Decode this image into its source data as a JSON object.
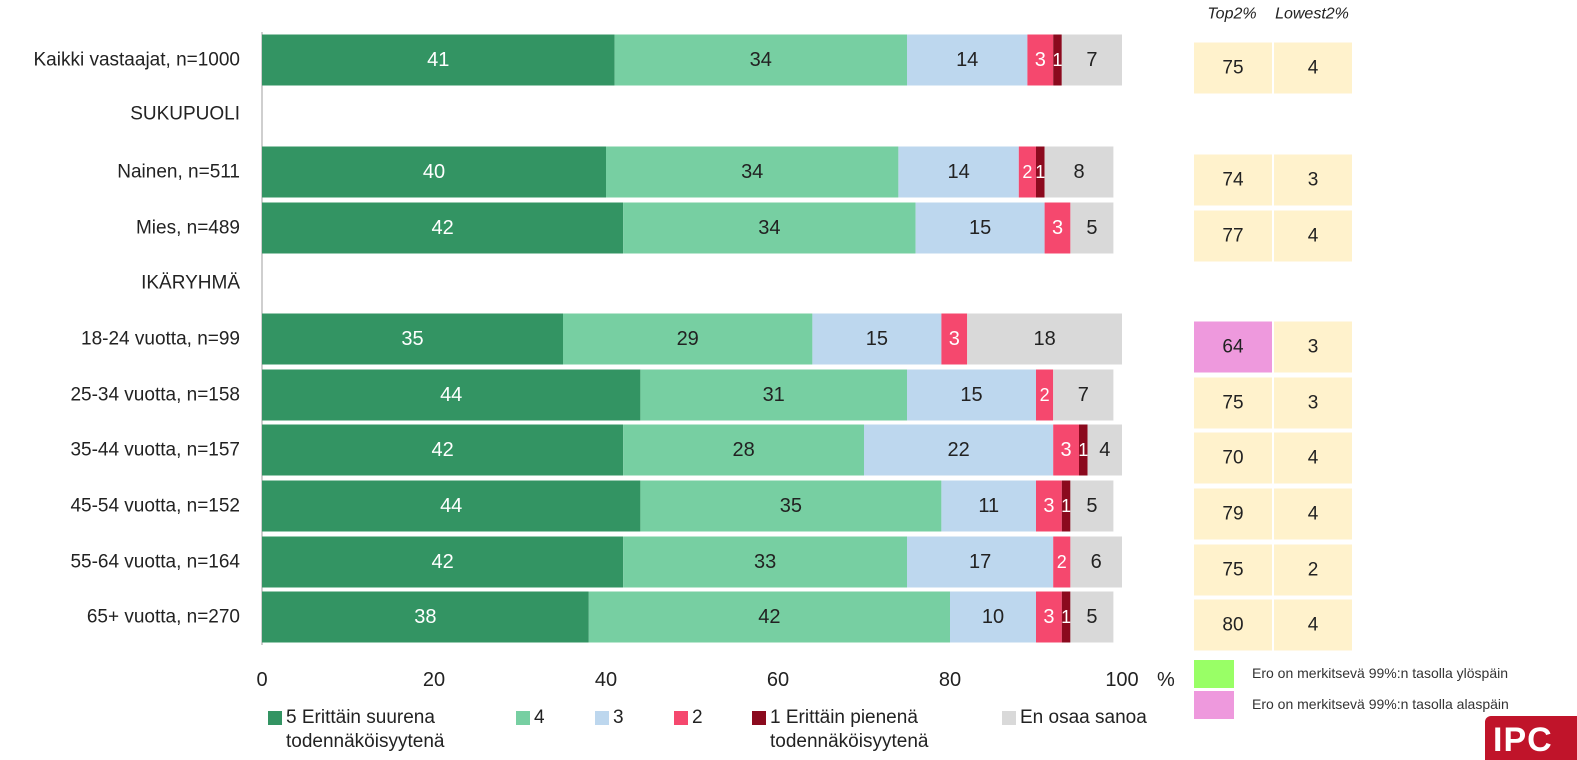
{
  "chart_data": {
    "type": "bar",
    "orientation": "horizontal",
    "stacked": true,
    "xlim": [
      0,
      100
    ],
    "xticks": [
      "0",
      "20",
      "40",
      "60",
      "80",
      "100"
    ],
    "xunit": "%",
    "legend_position": "bottom",
    "series_names": [
      "5 Erittäin suurena todennäköisyytenä",
      "4",
      "3",
      "2",
      "1 Erittäin pienenä todennäköisyytenä",
      "En osaa sanoa"
    ],
    "series_colors": [
      "#339463",
      "#77cfa2",
      "#bdd7ee",
      "#f5486e",
      "#8b0a1e",
      "#d9d9d9"
    ],
    "series_label_colors": [
      "#ffffff",
      "#222222",
      "#222222",
      "#ffffff",
      "#ffffff",
      "#222222"
    ],
    "rows": [
      {
        "label": "Kaikki vastaajat, n=1000",
        "values": [
          41,
          34,
          14,
          3,
          1,
          7
        ],
        "top2": "75",
        "lowest2": "4",
        "top2_sig": ""
      },
      {
        "label": "SUKUPUOLI",
        "heading": true
      },
      {
        "label": "Nainen, n=511",
        "values": [
          40,
          34,
          14,
          2,
          1,
          8
        ],
        "top2": "74",
        "lowest2": "3",
        "top2_sig": ""
      },
      {
        "label": "Mies, n=489",
        "values": [
          42,
          34,
          15,
          3,
          0,
          5
        ],
        "top2": "77",
        "lowest2": "4",
        "top2_sig": ""
      },
      {
        "label": "IKÄRYHMÄ",
        "heading": true
      },
      {
        "label": "18-24 vuotta, n=99",
        "values": [
          35,
          29,
          15,
          3,
          0,
          18
        ],
        "top2": "64",
        "lowest2": "3",
        "top2_sig": "down"
      },
      {
        "label": "25-34 vuotta, n=158",
        "values": [
          44,
          31,
          15,
          2,
          0,
          7
        ],
        "top2": "75",
        "lowest2": "3",
        "top2_sig": ""
      },
      {
        "label": "35-44 vuotta, n=157",
        "values": [
          42,
          28,
          22,
          3,
          1,
          4
        ],
        "top2": "70",
        "lowest2": "4",
        "top2_sig": ""
      },
      {
        "label": "45-54 vuotta, n=152",
        "values": [
          44,
          35,
          11,
          3,
          1,
          5
        ],
        "top2": "79",
        "lowest2": "4",
        "top2_sig": ""
      },
      {
        "label": "55-64 vuotta, n=164",
        "values": [
          42,
          33,
          17,
          2,
          0,
          6
        ],
        "top2": "75",
        "lowest2": "2",
        "top2_sig": ""
      },
      {
        "label": "65+ vuotta, n=270",
        "values": [
          38,
          42,
          10,
          3,
          1,
          5
        ],
        "top2": "80",
        "lowest2": "4",
        "top2_sig": ""
      }
    ],
    "side_columns": {
      "top2": "Top2%",
      "lowest2": "Lowest2%"
    },
    "side_color": "#fff2cc",
    "sig_up_color": "#99ff66",
    "sig_down_color": "#ee99dd"
  },
  "legend": {
    "s5_line1": "5 Erittäin suurena",
    "s5_line2": "todennäköisyytenä",
    "s4": "4",
    "s3": "3",
    "s2": "2",
    "s1_line1": "1 Erittäin pienenä",
    "s1_line2": "todennäköisyytenä",
    "s0": "En osaa sanoa"
  },
  "significance": {
    "up_label": "Ero on merkitsevä 99%:n tasolla ylöspäin",
    "down_label": "Ero on merkitsevä 99%:n tasolla alaspäin"
  },
  "logo": {
    "text": "IPC"
  }
}
